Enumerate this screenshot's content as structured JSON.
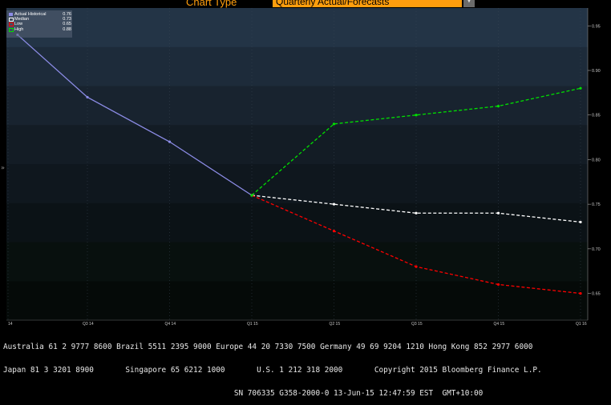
{
  "header": {
    "chart_type_label": "Chart Type",
    "chart_type_value": "Quarterly Actual/Forecasts"
  },
  "chart_data": {
    "type": "line",
    "categories": [
      "14",
      "Q3 14",
      "Q4 14",
      "Q1 15",
      "Q2 15",
      "Q3 15",
      "Q4 15",
      "Q1 16",
      "Q2 16"
    ],
    "ylim": [
      0.62,
      0.97
    ],
    "yticks": [
      "0.95",
      "0.90",
      "0.85",
      "0.80",
      "0.75",
      "0.70",
      "0.65"
    ],
    "series": [
      {
        "name": "Actual Historical",
        "legend_value": "0.76",
        "color": "#8c8ce6",
        "dash": false,
        "x": [
          -0.85,
          0.0,
          1.0,
          2.0
        ],
        "values": [
          0.94,
          0.87,
          0.82,
          0.76
        ]
      },
      {
        "name": "Median",
        "legend_value": "0.73",
        "color": "#ffffff",
        "dash": true,
        "x": [
          2.0,
          3.0,
          4.0,
          5.0,
          6.0
        ],
        "values": [
          0.76,
          0.75,
          0.74,
          0.74,
          0.73
        ]
      },
      {
        "name": "Low",
        "legend_value": "0.65",
        "color": "#ff0000",
        "dash": true,
        "x": [
          2.0,
          3.0,
          4.0,
          5.0,
          6.0
        ],
        "values": [
          0.76,
          0.72,
          0.68,
          0.66,
          0.65
        ]
      },
      {
        "name": "High",
        "legend_value": "0.88",
        "color": "#00e000",
        "dash": true,
        "x": [
          2.0,
          3.0,
          4.0,
          5.0,
          6.0
        ],
        "values": [
          0.76,
          0.84,
          0.85,
          0.86,
          0.88
        ]
      }
    ]
  },
  "footer": {
    "line1": "Australia 61 2 9777 8600 Brazil 5511 2395 9000 Europe 44 20 7330 7500 Germany 49 69 9204 1210 Hong Kong 852 2977 6000",
    "line2": "Japan 81 3 3201 8900       Singapore 65 6212 1000       U.S. 1 212 318 2000       Copyright 2015 Bloomberg Finance L.P.",
    "line3": "                                                   SN 706335 G358-2000-0 13-Jun-15 12:47:59 EST  GMT+10:00"
  }
}
